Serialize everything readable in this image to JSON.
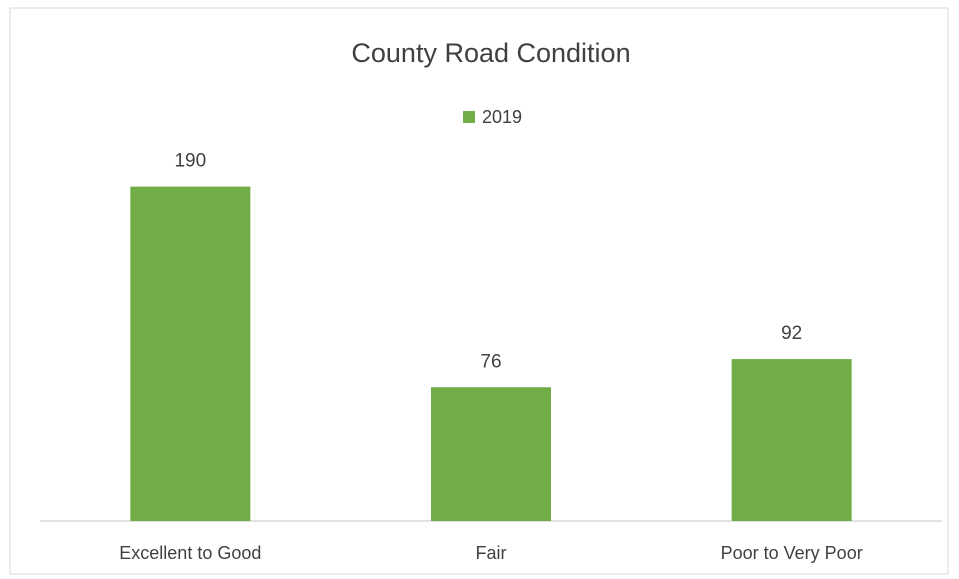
{
  "chart_data": {
    "type": "bar",
    "title": "County Road Condition",
    "legend": "2019",
    "categories": [
      "Excellent to Good",
      "Fair",
      "Poor to Very Poor"
    ],
    "values": [
      190,
      76,
      92
    ],
    "color": "#70ad47",
    "ylim": [
      0,
      200
    ]
  }
}
